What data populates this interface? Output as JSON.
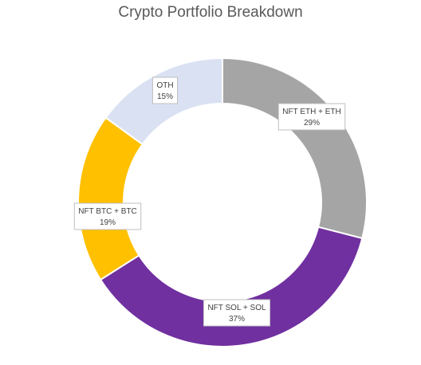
{
  "chart_data": {
    "type": "pie",
    "variant": "doughnut",
    "title": "Crypto Portfolio Breakdown",
    "categories": [
      "NFT ETH + ETH",
      "NFT SOL + SOL",
      "NFT BTC + BTC",
      "OTH"
    ],
    "values": [
      29,
      37,
      19,
      15
    ],
    "value_labels": [
      "29%",
      "37%",
      "19%",
      "15%"
    ],
    "colors": [
      "#a5a5a5",
      "#7030a0",
      "#ffc000",
      "#d9e1f2"
    ],
    "legend": "none"
  }
}
